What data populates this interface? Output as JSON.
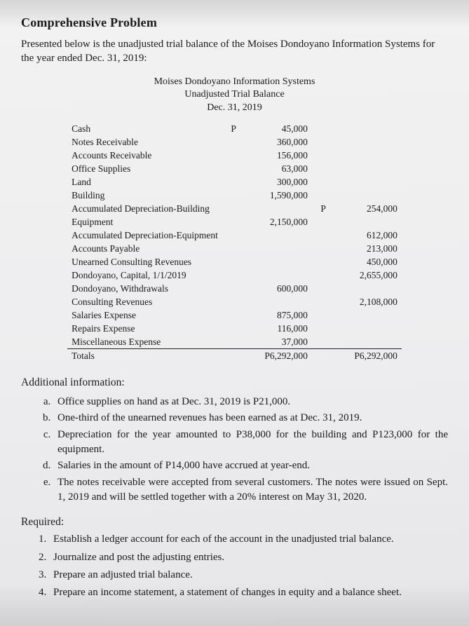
{
  "cut_label": "",
  "title": "Comprehensive Problem",
  "intro": "Presented below is the unadjusted trial balance of the Moises Dondoyano Information Systems for the year ended Dec. 31, 2019:",
  "tb": {
    "h1": "Moises Dondoyano Information Systems",
    "h2": "Unadjusted Trial Balance",
    "h3": "Dec. 31, 2019",
    "peso": "P",
    "rows": [
      {
        "a": "Cash",
        "d": "45,000",
        "c": ""
      },
      {
        "a": "Notes Receivable",
        "d": "360,000",
        "c": ""
      },
      {
        "a": "Accounts Receivable",
        "d": "156,000",
        "c": ""
      },
      {
        "a": "Office Supplies",
        "d": "63,000",
        "c": ""
      },
      {
        "a": "Land",
        "d": "300,000",
        "c": ""
      },
      {
        "a": "Building",
        "d": "1,590,000",
        "c": ""
      },
      {
        "a": "Accumulated Depreciation-Building",
        "d": "",
        "c": "254,000"
      },
      {
        "a": "Equipment",
        "d": "2,150,000",
        "c": ""
      },
      {
        "a": "Accumulated Depreciation-Equipment",
        "d": "",
        "c": "612,000"
      },
      {
        "a": "Accounts Payable",
        "d": "",
        "c": "213,000"
      },
      {
        "a": "Unearned Consulting Revenues",
        "d": "",
        "c": "450,000"
      },
      {
        "a": "Dondoyano, Capital, 1/1/2019",
        "d": "",
        "c": "2,655,000"
      },
      {
        "a": "Dondoyano, Withdrawals",
        "d": "600,000",
        "c": ""
      },
      {
        "a": "Consulting Revenues",
        "d": "",
        "c": "2,108,000"
      },
      {
        "a": "Salaries Expense",
        "d": "875,000",
        "c": ""
      },
      {
        "a": "Repairs Expense",
        "d": "116,000",
        "c": ""
      },
      {
        "a": "Miscellaneous Expense",
        "d": "37,000",
        "c": ""
      }
    ],
    "totals": {
      "a": "Totals",
      "d": "P6,292,000",
      "c": "P6,292,000"
    }
  },
  "addl_h": "Additional information:",
  "addl": [
    "Office supplies on hand as at Dec. 31, 2019 is P21,000.",
    "One-third of the unearned revenues has been earned as at Dec. 31, 2019.",
    "Depreciation for the year amounted to P38,000 for the building and P123,000 for the equipment.",
    "Salaries in the amount of P14,000 have accrued at year-end.",
    "The notes receivable were accepted from several customers.  The notes were issued on Sept. 1, 2019 and will be settled together with a 20% interest on May 31, 2020."
  ],
  "req_h": "Required:",
  "req": [
    "Establish a ledger account for each of the account in the unadjusted trial balance.",
    "Journalize and post the adjusting entries.",
    "Prepare an adjusted trial balance.",
    "Prepare an income statement, a statement of changes in equity and a balance sheet."
  ]
}
